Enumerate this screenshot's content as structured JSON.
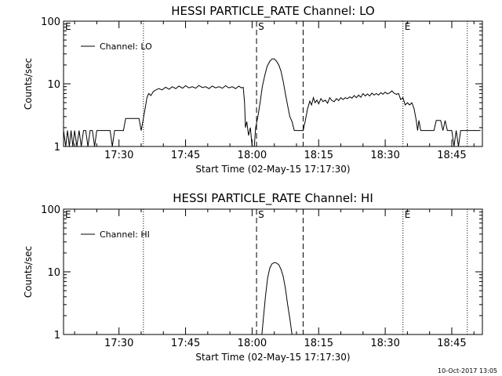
{
  "footer": {
    "timestamp": "10-Oct-2017 13:05"
  },
  "chart_data": [
    {
      "type": "line",
      "title": "HESSI PARTICLE_RATE Channel: LO",
      "xlabel": "Start Time (02-May-15 17:17:30)",
      "ylabel": "Counts/sec",
      "yscale": "log",
      "ylim": [
        1,
        100
      ],
      "xlim_minutes": [
        17.5,
        100.5
      ],
      "xticks": [
        {
          "label": "17:30",
          "min": 30
        },
        {
          "label": "17:45",
          "min": 45
        },
        {
          "label": "18:00",
          "min": 60
        },
        {
          "label": "18:15",
          "min": 75
        },
        {
          "label": "18:30",
          "min": 90
        },
        {
          "label": "18:45",
          "min": 105
        }
      ],
      "yticks": [
        {
          "label": "1",
          "value": 1
        },
        {
          "label": "10",
          "value": 10
        },
        {
          "label": "100",
          "value": 100
        }
      ],
      "legend": {
        "label": "Channel: LO",
        "placement": "top-left"
      },
      "markers": [
        {
          "label": "E",
          "min": 17.5,
          "style": "dotted"
        },
        {
          "label": "",
          "min": 35.5,
          "style": "dotted"
        },
        {
          "label": "S",
          "min": 61,
          "style": "dashed"
        },
        {
          "label": "",
          "min": 71.5,
          "style": "dashed"
        },
        {
          "label": "E",
          "min": 94,
          "style": "dotted"
        },
        {
          "label": "",
          "min": 108.5,
          "style": "dotted"
        }
      ],
      "series": [
        {
          "name": "Channel: LO",
          "points": [
            [
              17.5,
              1.8
            ],
            [
              18.0,
              1.0
            ],
            [
              18.4,
              1.8
            ],
            [
              18.8,
              1.0
            ],
            [
              19.2,
              1.8
            ],
            [
              19.6,
              1.0
            ],
            [
              20.0,
              1.8
            ],
            [
              20.5,
              1.0
            ],
            [
              21.0,
              1.8
            ],
            [
              21.5,
              1.0
            ],
            [
              22.0,
              1.8
            ],
            [
              22.5,
              1.8
            ],
            [
              23.0,
              1.0
            ],
            [
              23.5,
              1.8
            ],
            [
              24.0,
              1.8
            ],
            [
              24.5,
              1.0
            ],
            [
              25.0,
              1.8
            ],
            [
              26.0,
              1.8
            ],
            [
              27.0,
              1.8
            ],
            [
              28.0,
              1.8
            ],
            [
              28.5,
              1.0
            ],
            [
              29.0,
              1.8
            ],
            [
              30.0,
              1.8
            ],
            [
              31.0,
              1.8
            ],
            [
              31.5,
              2.8
            ],
            [
              32.5,
              2.8
            ],
            [
              33.5,
              2.8
            ],
            [
              34.5,
              2.8
            ],
            [
              35.0,
              1.8
            ],
            [
              35.5,
              2.8
            ],
            [
              36.0,
              4.5
            ],
            [
              36.3,
              6.0
            ],
            [
              36.7,
              7.0
            ],
            [
              37.2,
              6.5
            ],
            [
              37.7,
              7.5
            ],
            [
              38.3,
              8.0
            ],
            [
              39.0,
              8.4
            ],
            [
              39.7,
              8.0
            ],
            [
              40.5,
              8.8
            ],
            [
              41.3,
              8.2
            ],
            [
              42.0,
              9.0
            ],
            [
              42.8,
              8.4
            ],
            [
              43.5,
              9.2
            ],
            [
              44.3,
              8.5
            ],
            [
              45.0,
              9.3
            ],
            [
              45.8,
              8.6
            ],
            [
              46.5,
              9.0
            ],
            [
              47.3,
              8.5
            ],
            [
              48.0,
              9.4
            ],
            [
              48.8,
              8.7
            ],
            [
              49.5,
              9.0
            ],
            [
              50.3,
              8.4
            ],
            [
              51.0,
              9.2
            ],
            [
              51.8,
              8.6
            ],
            [
              52.5,
              9.0
            ],
            [
              53.3,
              8.5
            ],
            [
              54.0,
              9.3
            ],
            [
              54.8,
              8.6
            ],
            [
              55.5,
              9.0
            ],
            [
              56.3,
              8.4
            ],
            [
              57.0,
              9.2
            ],
            [
              57.6,
              8.6
            ],
            [
              58.0,
              8.8
            ],
            [
              58.3,
              5.0
            ],
            [
              58.5,
              2.0
            ],
            [
              58.8,
              2.5
            ],
            [
              59.2,
              1.5
            ],
            [
              59.6,
              2.0
            ],
            [
              60.0,
              1.0
            ],
            [
              60.5,
              1.0
            ],
            [
              60.8,
              2.0
            ],
            [
              61.3,
              3.0
            ],
            [
              61.8,
              5.0
            ],
            [
              62.3,
              9.0
            ],
            [
              62.9,
              14.0
            ],
            [
              63.4,
              19.0
            ],
            [
              64.0,
              23.0
            ],
            [
              64.5,
              25.0
            ],
            [
              65.0,
              25.0
            ],
            [
              65.5,
              23.0
            ],
            [
              66.0,
              20.0
            ],
            [
              66.5,
              16.0
            ],
            [
              67.0,
              11.0
            ],
            [
              67.5,
              7.0
            ],
            [
              68.0,
              4.5
            ],
            [
              68.5,
              3.0
            ],
            [
              69.0,
              2.5
            ],
            [
              69.5,
              1.8
            ],
            [
              70.5,
              1.8
            ],
            [
              71.5,
              1.8
            ],
            [
              72.0,
              2.6
            ],
            [
              72.5,
              4.0
            ],
            [
              73.0,
              5.3
            ],
            [
              73.4,
              4.6
            ],
            [
              73.8,
              6.0
            ],
            [
              74.2,
              5.0
            ],
            [
              74.6,
              5.5
            ],
            [
              75.0,
              4.8
            ],
            [
              75.5,
              5.8
            ],
            [
              76.0,
              5.2
            ],
            [
              76.5,
              5.5
            ],
            [
              77.0,
              4.9
            ],
            [
              77.5,
              6.0
            ],
            [
              78.0,
              5.4
            ],
            [
              78.5,
              5.2
            ],
            [
              79.0,
              5.8
            ],
            [
              79.5,
              5.4
            ],
            [
              80.0,
              6.0
            ],
            [
              80.5,
              5.6
            ],
            [
              81.0,
              6.0
            ],
            [
              81.5,
              5.8
            ],
            [
              82.0,
              6.2
            ],
            [
              82.5,
              5.9
            ],
            [
              83.0,
              6.5
            ],
            [
              83.5,
              6.0
            ],
            [
              84.0,
              6.6
            ],
            [
              84.5,
              6.1
            ],
            [
              85.0,
              7.0
            ],
            [
              85.5,
              6.4
            ],
            [
              86.0,
              6.9
            ],
            [
              86.5,
              6.4
            ],
            [
              87.0,
              7.1
            ],
            [
              87.5,
              6.6
            ],
            [
              88.0,
              7.0
            ],
            [
              88.5,
              6.6
            ],
            [
              89.0,
              7.2
            ],
            [
              89.5,
              6.8
            ],
            [
              90.0,
              7.4
            ],
            [
              90.5,
              6.9
            ],
            [
              91.0,
              7.2
            ],
            [
              91.5,
              7.7
            ],
            [
              92.0,
              7.1
            ],
            [
              92.5,
              6.8
            ],
            [
              93.0,
              7.0
            ],
            [
              93.5,
              5.6
            ],
            [
              94.0,
              6.0
            ],
            [
              94.5,
              4.6
            ],
            [
              95.0,
              5.0
            ],
            [
              95.5,
              4.6
            ],
            [
              96.0,
              5.0
            ],
            [
              96.5,
              4.0
            ],
            [
              97.0,
              2.6
            ],
            [
              97.3,
              1.8
            ],
            [
              97.6,
              2.6
            ],
            [
              98.0,
              1.8
            ],
            [
              99.0,
              1.8
            ],
            [
              100.0,
              1.8
            ],
            [
              101.0,
              1.8
            ],
            [
              101.5,
              2.6
            ],
            [
              102.5,
              2.6
            ],
            [
              103.0,
              1.8
            ],
            [
              103.5,
              2.6
            ],
            [
              104.0,
              1.8
            ],
            [
              105.0,
              1.8
            ],
            [
              105.5,
              1.0
            ],
            [
              106.0,
              1.8
            ],
            [
              106.5,
              1.0
            ],
            [
              107.0,
              1.8
            ],
            [
              108.0,
              1.8
            ],
            [
              109.0,
              1.8
            ],
            [
              110.0,
              1.8
            ],
            [
              111.0,
              1.8
            ],
            [
              111.5,
              1.8
            ]
          ]
        }
      ]
    },
    {
      "type": "line",
      "title": "HESSI PARTICLE_RATE Channel: HI",
      "xlabel": "Start Time (02-May-15 17:17:30)",
      "ylabel": "Counts/sec",
      "yscale": "log",
      "ylim": [
        1,
        100
      ],
      "xticks": [
        {
          "label": "17:30",
          "min": 30
        },
        {
          "label": "17:45",
          "min": 45
        },
        {
          "label": "18:00",
          "min": 60
        },
        {
          "label": "18:15",
          "min": 75
        },
        {
          "label": "18:30",
          "min": 90
        },
        {
          "label": "18:45",
          "min": 105
        }
      ],
      "yticks": [
        {
          "label": "1",
          "value": 1
        },
        {
          "label": "10",
          "value": 10
        },
        {
          "label": "100",
          "value": 100
        }
      ],
      "legend": {
        "label": "Channel: HI",
        "placement": "top-left"
      },
      "markers": [
        {
          "label": "E",
          "min": 17.5,
          "style": "dotted"
        },
        {
          "label": "",
          "min": 35.5,
          "style": "dotted"
        },
        {
          "label": "S",
          "min": 61,
          "style": "dashed"
        },
        {
          "label": "",
          "min": 71.5,
          "style": "dashed"
        },
        {
          "label": "E",
          "min": 94,
          "style": "dotted"
        },
        {
          "label": "",
          "min": 108.5,
          "style": "dotted"
        }
      ],
      "series": [
        {
          "name": "Channel: HI",
          "points": [
            [
              62.2,
              1.0
            ],
            [
              62.6,
              2.0
            ],
            [
              63.0,
              4.0
            ],
            [
              63.5,
              8.0
            ],
            [
              64.0,
              11.5
            ],
            [
              64.5,
              13.5
            ],
            [
              65.0,
              14.0
            ],
            [
              65.5,
              13.8
            ],
            [
              66.0,
              13.0
            ],
            [
              66.5,
              11.0
            ],
            [
              67.0,
              8.5
            ],
            [
              67.5,
              5.5
            ],
            [
              68.0,
              3.0
            ],
            [
              68.5,
              1.8
            ],
            [
              69.0,
              1.0
            ]
          ]
        }
      ]
    }
  ]
}
